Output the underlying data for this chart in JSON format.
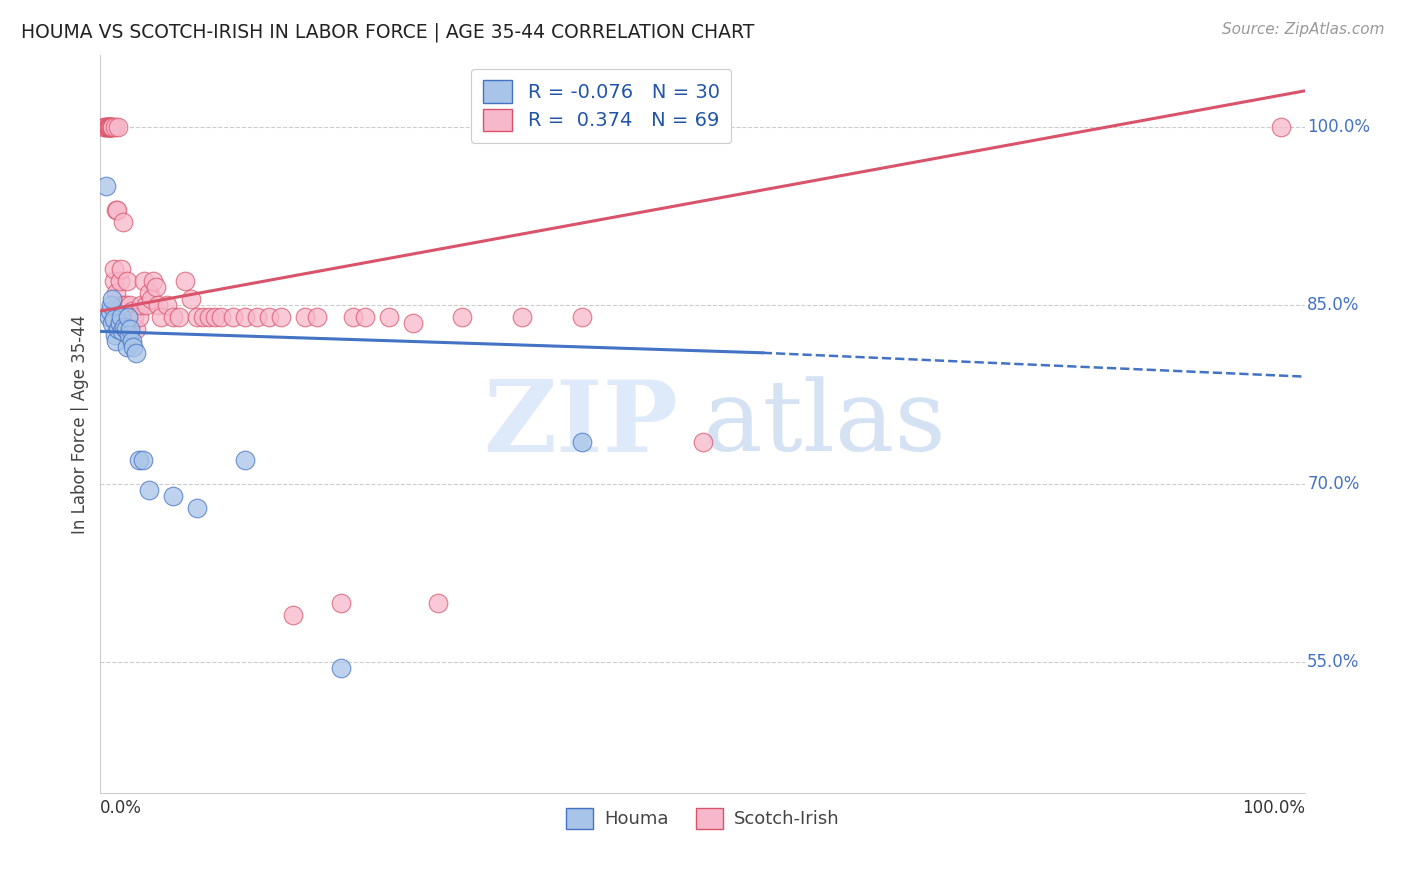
{
  "title": "HOUMA VS SCOTCH-IRISH IN LABOR FORCE | AGE 35-44 CORRELATION CHART",
  "source": "Source: ZipAtlas.com",
  "ylabel": "In Labor Force | Age 35-44",
  "ytick_labels": [
    "55.0%",
    "70.0%",
    "85.0%",
    "100.0%"
  ],
  "ytick_values": [
    0.55,
    0.7,
    0.85,
    1.0
  ],
  "legend_label1": "Houma",
  "legend_label2": "Scotch-Irish",
  "R_houma": -0.076,
  "N_houma": 30,
  "R_scotch": 0.374,
  "N_scotch": 69,
  "houma_color": "#a8c4e8",
  "scotch_color": "#f7b8cb",
  "trend_houma_color": "#4472c4",
  "trend_scotch_color": "#d9536a",
  "background": "#ffffff",
  "watermark_zip": "ZIP",
  "watermark_atlas": "atlas",
  "xlim": [
    0.0,
    1.0
  ],
  "ylim": [
    0.44,
    1.06
  ],
  "houma_x": [
    0.005,
    0.007,
    0.008,
    0.009,
    0.01,
    0.01,
    0.011,
    0.012,
    0.013,
    0.015,
    0.016,
    0.017,
    0.018,
    0.02,
    0.021,
    0.022,
    0.023,
    0.024,
    0.025,
    0.026,
    0.027,
    0.03,
    0.032,
    0.035,
    0.04,
    0.06,
    0.08,
    0.12,
    0.2,
    0.4
  ],
  "houma_y": [
    0.95,
    0.84,
    0.845,
    0.85,
    0.855,
    0.835,
    0.838,
    0.825,
    0.82,
    0.83,
    0.835,
    0.84,
    0.828,
    0.832,
    0.83,
    0.815,
    0.84,
    0.825,
    0.83,
    0.82,
    0.815,
    0.81,
    0.72,
    0.72,
    0.695,
    0.69,
    0.68,
    0.72,
    0.545,
    0.735
  ],
  "scotch_x": [
    0.003,
    0.004,
    0.005,
    0.006,
    0.006,
    0.007,
    0.007,
    0.008,
    0.008,
    0.009,
    0.01,
    0.01,
    0.011,
    0.011,
    0.012,
    0.013,
    0.013,
    0.014,
    0.015,
    0.016,
    0.017,
    0.018,
    0.019,
    0.02,
    0.021,
    0.022,
    0.025,
    0.026,
    0.028,
    0.03,
    0.032,
    0.034,
    0.036,
    0.038,
    0.04,
    0.042,
    0.044,
    0.046,
    0.048,
    0.05,
    0.055,
    0.06,
    0.065,
    0.07,
    0.075,
    0.08,
    0.085,
    0.09,
    0.095,
    0.1,
    0.11,
    0.12,
    0.13,
    0.14,
    0.15,
    0.16,
    0.17,
    0.18,
    0.2,
    0.21,
    0.22,
    0.24,
    0.26,
    0.28,
    0.3,
    0.35,
    0.4,
    0.5,
    0.98
  ],
  "scotch_y": [
    1.0,
    1.0,
    1.0,
    1.0,
    1.0,
    1.0,
    1.0,
    1.0,
    1.0,
    1.0,
    1.0,
    1.0,
    0.87,
    0.88,
    1.0,
    0.86,
    0.93,
    0.93,
    1.0,
    0.87,
    0.88,
    0.85,
    0.92,
    0.84,
    0.85,
    0.87,
    0.85,
    0.845,
    0.84,
    0.83,
    0.84,
    0.85,
    0.87,
    0.85,
    0.86,
    0.855,
    0.87,
    0.865,
    0.85,
    0.84,
    0.85,
    0.84,
    0.84,
    0.87,
    0.855,
    0.84,
    0.84,
    0.84,
    0.84,
    0.84,
    0.84,
    0.84,
    0.84,
    0.84,
    0.84,
    0.59,
    0.84,
    0.84,
    0.6,
    0.84,
    0.84,
    0.84,
    0.835,
    0.6,
    0.84,
    0.84,
    0.84,
    0.735,
    1.0
  ],
  "trend_houma_x0": 0.0,
  "trend_houma_y0": 0.828,
  "trend_houma_x1": 0.55,
  "trend_houma_y1": 0.81,
  "trend_houma_dash_x1": 1.0,
  "trend_houma_dash_y1": 0.79,
  "trend_scotch_x0": 0.0,
  "trend_scotch_y0": 0.845,
  "trend_scotch_x1": 1.0,
  "trend_scotch_y1": 1.03
}
